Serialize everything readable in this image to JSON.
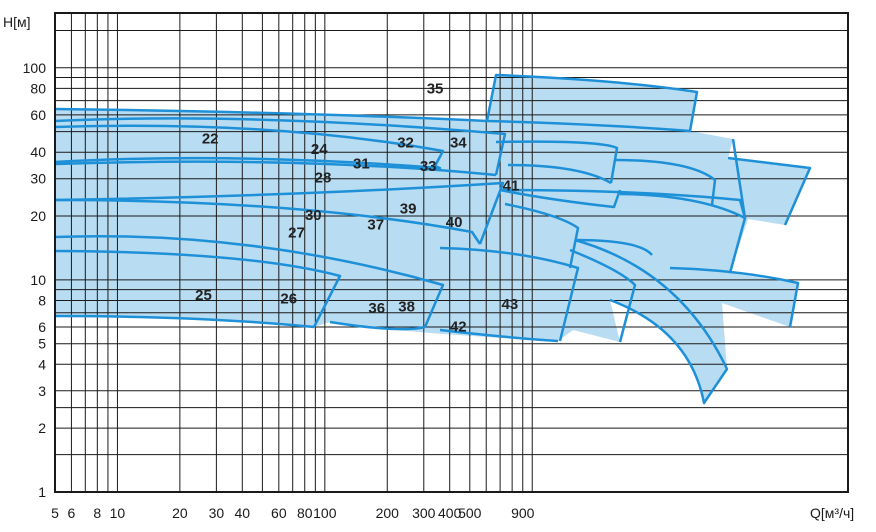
{
  "chart_data": {
    "type": "area",
    "title": "",
    "xlabel": "Q[м³/ч]",
    "ylabel": "H[м]",
    "xscale": "log",
    "yscale": "log",
    "xlim": [
      5,
      1100
    ],
    "ylim": [
      1,
      200
    ],
    "grid": true,
    "fill_color": "#b8dcf2",
    "line_color": "#1e90d8",
    "x_ticks": [
      5,
      6,
      8,
      10,
      20,
      30,
      40,
      60,
      80,
      100,
      200,
      300,
      400,
      500,
      900
    ],
    "x_tick_labels": [
      "5",
      "6",
      "8",
      "10",
      "20",
      "30",
      "40",
      "60",
      "80",
      "100",
      "200",
      "300",
      "400",
      "500",
      "900"
    ],
    "y_ticks": [
      1,
      2,
      3,
      4,
      5,
      6,
      8,
      10,
      20,
      30,
      40,
      60,
      80,
      100
    ],
    "y_tick_labels": [
      "1",
      "2",
      "3",
      "4",
      "5",
      "6",
      "8",
      "10",
      "20",
      "30",
      "40",
      "60",
      "80",
      "100"
    ],
    "zone_labels": [
      {
        "text": "22",
        "q": 28,
        "h": 46
      },
      {
        "text": "24",
        "q": 94,
        "h": 41
      },
      {
        "text": "25",
        "q": 26,
        "h": 8.4
      },
      {
        "text": "26",
        "q": 67,
        "h": 8.1
      },
      {
        "text": "27",
        "q": 73,
        "h": 16.5
      },
      {
        "text": "28",
        "q": 98,
        "h": 30
      },
      {
        "text": "30",
        "q": 88,
        "h": 20
      },
      {
        "text": "31",
        "q": 150,
        "h": 35
      },
      {
        "text": "32",
        "q": 245,
        "h": 44
      },
      {
        "text": "33",
        "q": 315,
        "h": 34
      },
      {
        "text": "34",
        "q": 440,
        "h": 44
      },
      {
        "text": "35",
        "q": 340,
        "h": 79
      },
      {
        "text": "36",
        "q": 178,
        "h": 7.3
      },
      {
        "text": "37",
        "q": 176,
        "h": 18
      },
      {
        "text": "38",
        "q": 248,
        "h": 7.4
      },
      {
        "text": "39",
        "q": 252,
        "h": 21.5
      },
      {
        "text": "40",
        "q": 420,
        "h": 18.5
      },
      {
        "text": "41",
        "q": 790,
        "h": 27.5
      },
      {
        "text": "42",
        "q": 440,
        "h": 5.95
      },
      {
        "text": "43",
        "q": 780,
        "h": 7.6
      }
    ]
  }
}
